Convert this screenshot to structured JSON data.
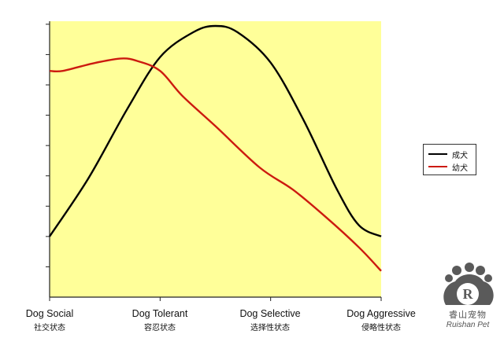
{
  "chart_data": {
    "type": "line",
    "categories": [
      "Dog Social",
      "Dog Tolerant",
      "Dog Selective",
      "Dog Aggressive"
    ],
    "categories_cn": [
      "社交状态",
      "容忍状态",
      "选择性状态",
      "侵略性状态"
    ],
    "xlim": [
      0,
      3
    ],
    "ylim": [
      0,
      10
    ],
    "y_tick_count": 9,
    "grid": false,
    "legend_placement": "right",
    "plot_background": "#ffff99",
    "series": [
      {
        "name": "成犬",
        "color": "#000000",
        "points": [
          [
            0,
            2.2
          ],
          [
            0.35,
            4.3
          ],
          [
            0.7,
            6.8
          ],
          [
            1.0,
            8.7
          ],
          [
            1.3,
            9.6
          ],
          [
            1.5,
            9.83
          ],
          [
            1.7,
            9.6
          ],
          [
            2.0,
            8.5
          ],
          [
            2.3,
            6.4
          ],
          [
            2.6,
            3.9
          ],
          [
            2.8,
            2.6
          ],
          [
            3.0,
            2.2
          ]
        ]
      },
      {
        "name": "幼犬",
        "color": "#cc1a0f",
        "points": [
          [
            0,
            8.2
          ],
          [
            0.12,
            8.2
          ],
          [
            0.4,
            8.48
          ],
          [
            0.65,
            8.65
          ],
          [
            0.8,
            8.55
          ],
          [
            1.0,
            8.2
          ],
          [
            1.2,
            7.3
          ],
          [
            1.5,
            6.2
          ],
          [
            1.9,
            4.7
          ],
          [
            2.2,
            3.9
          ],
          [
            2.5,
            2.9
          ],
          [
            2.8,
            1.8
          ],
          [
            3.0,
            0.95
          ]
        ]
      }
    ]
  },
  "watermark": {
    "cn": "睿山宠物",
    "en": "Ruishan Pet",
    "badge_letter": "R"
  }
}
